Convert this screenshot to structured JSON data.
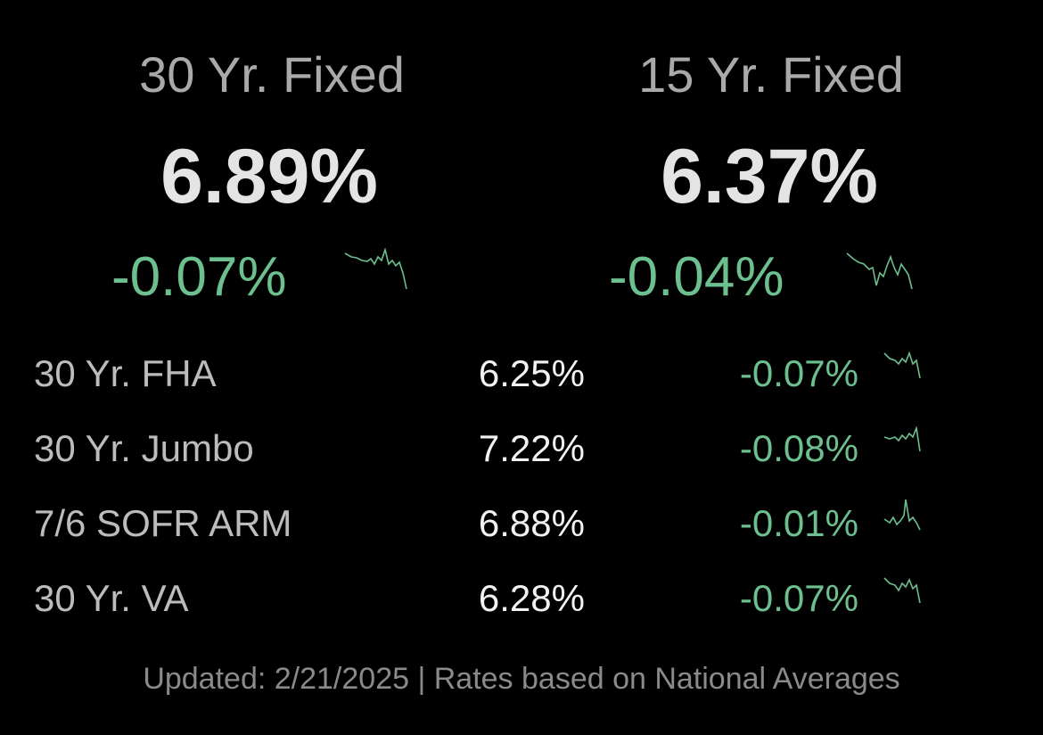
{
  "featured": [
    {
      "label": "30 Yr. Fixed",
      "rate": "6.89%",
      "change": "-0.07%"
    },
    {
      "label": "15 Yr. Fixed",
      "rate": "6.37%",
      "change": "-0.04%"
    }
  ],
  "rows": [
    {
      "label": "30 Yr. FHA",
      "rate": "6.25%",
      "change": "-0.07%"
    },
    {
      "label": "30 Yr. Jumbo",
      "rate": "7.22%",
      "change": "-0.08%"
    },
    {
      "label": "7/6 SOFR ARM",
      "rate": "6.88%",
      "change": "-0.01%"
    },
    {
      "label": "30 Yr. VA",
      "rate": "6.28%",
      "change": "-0.07%"
    }
  ],
  "footer": "Updated: 2/21/2025 | Rates based on National Averages"
}
